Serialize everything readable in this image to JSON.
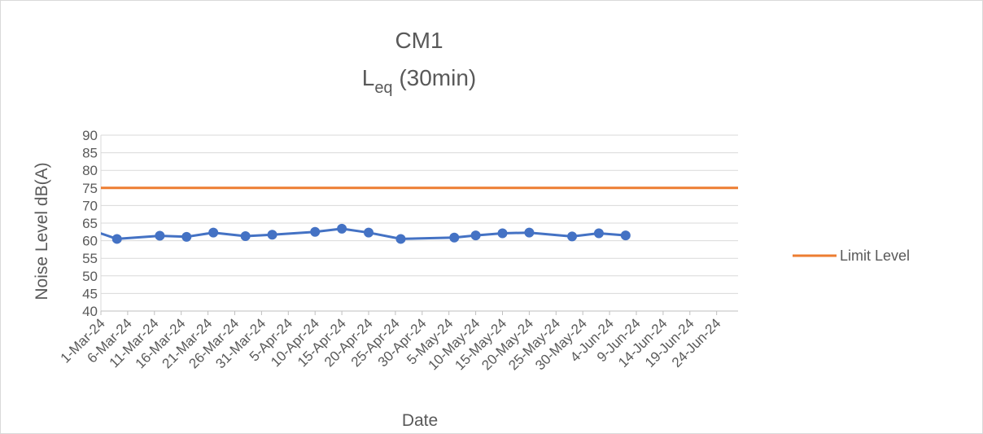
{
  "chart_data": {
    "type": "line",
    "title_main": "CM1",
    "title_sub_base": "L",
    "title_sub_subscript": "eq",
    "title_sub_rest": " (30min)",
    "xlabel": "Date",
    "ylabel": "Noise Level dB(A)",
    "ylim": [
      40,
      90
    ],
    "y_ticks": [
      40,
      45,
      50,
      55,
      60,
      65,
      70,
      75,
      80,
      85,
      90
    ],
    "x_range": [
      "2024-03-01",
      "2024-06-28"
    ],
    "x_tick_labels": [
      {
        "date": "2024-03-01",
        "label": "1-Mar-24"
      },
      {
        "date": "2024-03-06",
        "label": "6-Mar-24"
      },
      {
        "date": "2024-03-11",
        "label": "11-Mar-24"
      },
      {
        "date": "2024-03-16",
        "label": "16-Mar-24"
      },
      {
        "date": "2024-03-21",
        "label": "21-Mar-24"
      },
      {
        "date": "2024-03-26",
        "label": "26-Mar-24"
      },
      {
        "date": "2024-03-31",
        "label": "31-Mar-24"
      },
      {
        "date": "2024-04-05",
        "label": "5-Apr-24"
      },
      {
        "date": "2024-04-10",
        "label": "10-Apr-24"
      },
      {
        "date": "2024-04-15",
        "label": "15-Apr-24"
      },
      {
        "date": "2024-04-20",
        "label": "20-Apr-24"
      },
      {
        "date": "2024-04-25",
        "label": "25-Apr-24"
      },
      {
        "date": "2024-04-30",
        "label": "30-Apr-24"
      },
      {
        "date": "2024-05-05",
        "label": "5-May-24"
      },
      {
        "date": "2024-05-10",
        "label": "10-May-24"
      },
      {
        "date": "2024-05-15",
        "label": "15-May-24"
      },
      {
        "date": "2024-05-20",
        "label": "20-May-24"
      },
      {
        "date": "2024-05-25",
        "label": "25-May-24"
      },
      {
        "date": "2024-05-30",
        "label": "30-May-24"
      },
      {
        "date": "2024-06-04",
        "label": "4-Jun-24"
      },
      {
        "date": "2024-06-09",
        "label": "9-Jun-24"
      },
      {
        "date": "2024-06-14",
        "label": "14-Jun-24"
      },
      {
        "date": "2024-06-19",
        "label": "19-Jun-24"
      },
      {
        "date": "2024-06-24",
        "label": "24-Jun-24"
      }
    ],
    "grid": true,
    "legend_position": "right",
    "series": [
      {
        "name": "",
        "color": "#4472c4",
        "marker": "circle",
        "points": [
          {
            "x": "2024-02-29",
            "y": 62.6
          },
          {
            "x": "2024-03-04",
            "y": 60.5
          },
          {
            "x": "2024-03-12",
            "y": 61.4
          },
          {
            "x": "2024-03-17",
            "y": 61.1
          },
          {
            "x": "2024-03-22",
            "y": 62.3
          },
          {
            "x": "2024-03-28",
            "y": 61.3
          },
          {
            "x": "2024-04-02",
            "y": 61.7
          },
          {
            "x": "2024-04-10",
            "y": 62.5
          },
          {
            "x": "2024-04-15",
            "y": 63.4
          },
          {
            "x": "2024-04-20",
            "y": 62.3
          },
          {
            "x": "2024-04-26",
            "y": 60.5
          },
          {
            "x": "2024-05-06",
            "y": 60.9
          },
          {
            "x": "2024-05-10",
            "y": 61.5
          },
          {
            "x": "2024-05-15",
            "y": 62.1
          },
          {
            "x": "2024-05-20",
            "y": 62.3
          },
          {
            "x": "2024-05-28",
            "y": 61.2
          },
          {
            "x": "2024-06-02",
            "y": 62.1
          },
          {
            "x": "2024-06-07",
            "y": 61.5
          }
        ]
      },
      {
        "name": "Limit Level",
        "color": "#ed7d31",
        "marker": "none",
        "points": [
          {
            "x": "2024-02-28",
            "y": 75
          },
          {
            "x": "2024-06-28",
            "y": 75
          }
        ]
      }
    ]
  }
}
